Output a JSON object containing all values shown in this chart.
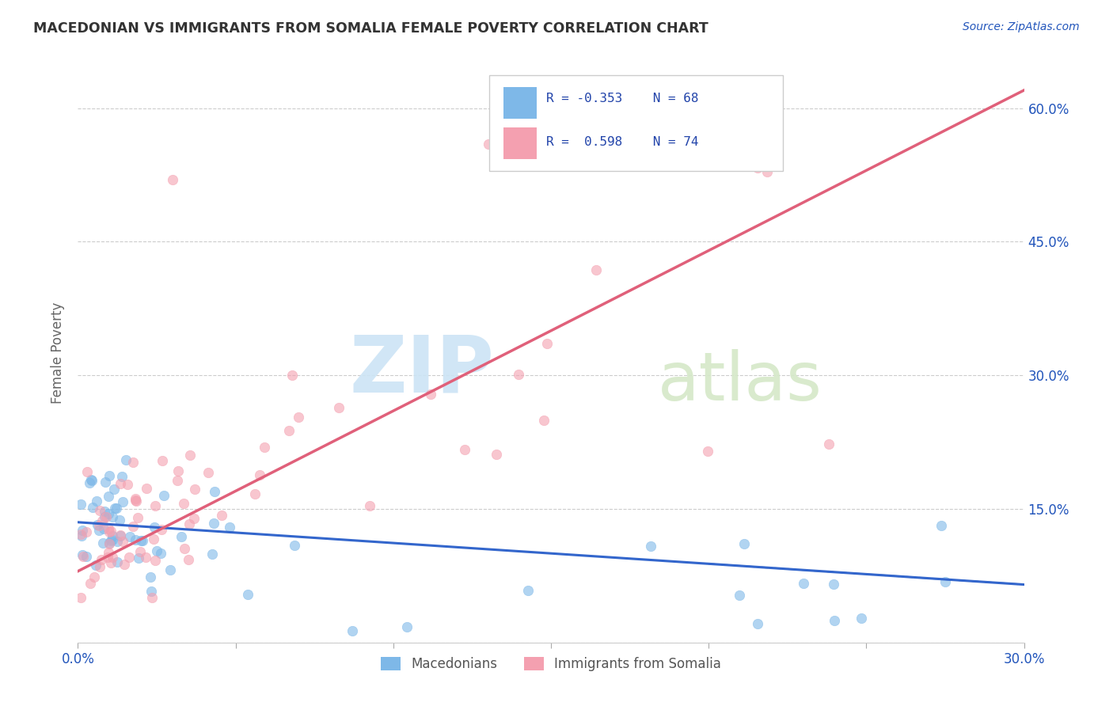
{
  "title": "MACEDONIAN VS IMMIGRANTS FROM SOMALIA FEMALE POVERTY CORRELATION CHART",
  "source": "Source: ZipAtlas.com",
  "ylabel": "Female Poverty",
  "xmin": 0.0,
  "xmax": 0.3,
  "ymin": 0.0,
  "ymax": 0.65,
  "yticks": [
    0.0,
    0.15,
    0.3,
    0.45,
    0.6
  ],
  "xticks": [
    0.0,
    0.05,
    0.1,
    0.15,
    0.2,
    0.25,
    0.3
  ],
  "legend_labels": [
    "Macedonians",
    "Immigrants from Somalia"
  ],
  "blue_color": "#7eb8e8",
  "pink_color": "#f4a0b0",
  "blue_line_color": "#3366cc",
  "pink_line_color": "#e0607a",
  "R_blue": -0.353,
  "N_blue": 68,
  "R_pink": 0.598,
  "N_pink": 74,
  "legend_R_color": "#2244aa",
  "title_color": "#333333",
  "tick_color": "#2255bb",
  "watermark_zip_color": "#cce4f5",
  "watermark_atlas_color": "#d5e8c8"
}
